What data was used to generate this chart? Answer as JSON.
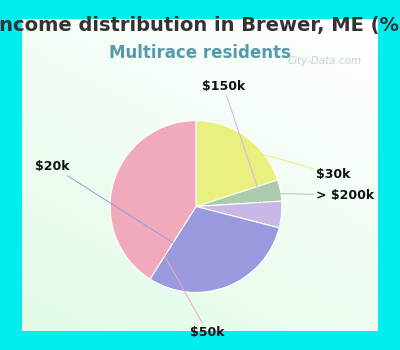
{
  "title": "Income distribution in Brewer, ME (%)",
  "subtitle": "Multirace residents",
  "title_fontsize": 14,
  "subtitle_fontsize": 12,
  "title_color": "#333333",
  "subtitle_color": "#5599aa",
  "background_color": "#00eeee",
  "chart_bg_start": "#f0f8f0",
  "chart_bg_end": "#d8eedd",
  "slices": [
    {
      "label": "$30k",
      "value": 20,
      "color": "#e8f080"
    },
    {
      "label": "> $200k",
      "value": 4,
      "color": "#aaccaa"
    },
    {
      "label": "$150k",
      "value": 5,
      "color": "#c8b8e8"
    },
    {
      "label": "$20k",
      "value": 30,
      "color": "#9999dd"
    },
    {
      "label": "$50k",
      "value": 41,
      "color": "#f0aabb"
    }
  ],
  "startangle": 90,
  "label_fontsize": 9,
  "label_color": "#111111",
  "watermark": "City-Data.com",
  "watermark_color": "#aabbcc",
  "border_width": 8,
  "border_color": "#00eeee"
}
